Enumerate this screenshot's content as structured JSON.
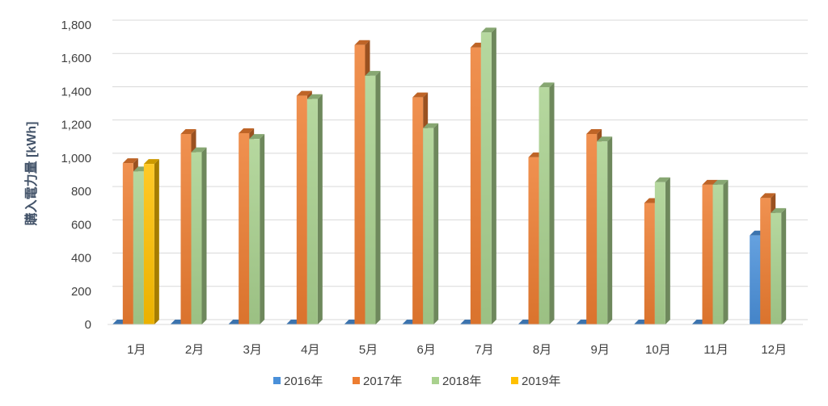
{
  "chart_data": {
    "type": "bar",
    "title": "",
    "xlabel": "",
    "ylabel": "購入電力量 [kWh]",
    "ylim": [
      0,
      1800
    ],
    "y_ticks": [
      "0",
      "200",
      "400",
      "600",
      "800",
      "1,000",
      "1,200",
      "1,400",
      "1,600",
      "1,800"
    ],
    "grid": true,
    "legend_position": "bottom",
    "categories": [
      "1月",
      "2月",
      "3月",
      "4月",
      "5月",
      "6月",
      "7月",
      "8月",
      "9月",
      "10月",
      "11月",
      "12月"
    ],
    "series": [
      {
        "name": "2016年",
        "color": "#4a90d9",
        "values": [
          0,
          0,
          0,
          0,
          0,
          0,
          0,
          0,
          0,
          0,
          0,
          535
        ]
      },
      {
        "name": "2017年",
        "color": "#ed7d31",
        "values": [
          970,
          1145,
          1150,
          1375,
          1680,
          1365,
          1665,
          1005,
          1145,
          730,
          840,
          760
        ]
      },
      {
        "name": "2018年",
        "color": "#a9d18e",
        "values": [
          920,
          1035,
          1115,
          1355,
          1495,
          1180,
          1755,
          1425,
          1100,
          855,
          840,
          670
        ]
      },
      {
        "name": "2019年",
        "color": "#ffc000",
        "values": [
          965,
          null,
          null,
          null,
          null,
          null,
          null,
          null,
          null,
          null,
          null,
          null
        ]
      }
    ]
  }
}
